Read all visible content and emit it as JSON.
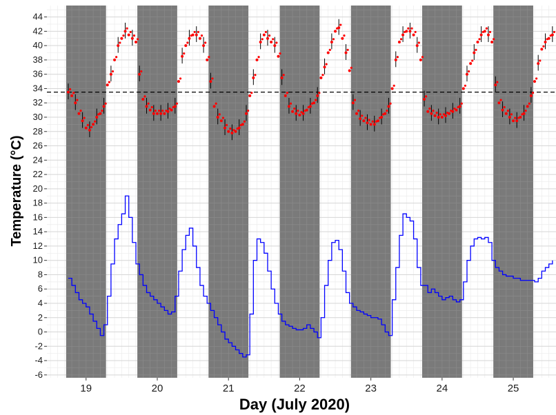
{
  "chart_data": {
    "type": "line",
    "xlabel": "Day (July 2020)",
    "ylabel": "Temperature (°C)",
    "xlim": [
      18.45,
      25.6
    ],
    "ylim": [
      -6.4,
      45.6
    ],
    "x_ticks": [
      19,
      20,
      21,
      22,
      23,
      24,
      25
    ],
    "y_ticks": [
      -6,
      -4,
      -2,
      0,
      2,
      4,
      6,
      8,
      10,
      12,
      14,
      16,
      18,
      20,
      22,
      24,
      26,
      28,
      30,
      32,
      34,
      36,
      38,
      40,
      42,
      44
    ],
    "grid": true,
    "reference_line": {
      "y": 33.5,
      "style": "dashed",
      "color": "#000000"
    },
    "shaded_bands": [
      {
        "x0": 18.72,
        "x1": 19.28
      },
      {
        "x0": 19.72,
        "x1": 20.28
      },
      {
        "x0": 20.72,
        "x1": 21.28
      },
      {
        "x0": 21.72,
        "x1": 22.28
      },
      {
        "x0": 22.72,
        "x1": 23.28
      },
      {
        "x0": 23.72,
        "x1": 24.28
      },
      {
        "x0": 24.72,
        "x1": 25.28
      }
    ],
    "series": [
      {
        "color": "#ff0000",
        "style": "points-with-range-bars",
        "x": [
          18.75,
          18.8,
          18.85,
          18.9,
          18.95,
          19.0,
          19.05,
          19.1,
          19.15,
          19.2,
          19.25,
          19.3,
          19.35,
          19.4,
          19.45,
          19.5,
          19.55,
          19.6,
          19.65,
          19.7,
          19.75,
          19.8,
          19.85,
          19.9,
          19.95,
          20.0,
          20.05,
          20.1,
          20.15,
          20.2,
          20.25,
          20.3,
          20.35,
          20.4,
          20.45,
          20.5,
          20.55,
          20.6,
          20.65,
          20.7,
          20.75,
          20.8,
          20.85,
          20.9,
          20.95,
          21.0,
          21.05,
          21.1,
          21.15,
          21.2,
          21.25,
          21.3,
          21.35,
          21.4,
          21.45,
          21.5,
          21.55,
          21.6,
          21.65,
          21.7,
          21.75,
          21.8,
          21.85,
          21.9,
          21.95,
          22.0,
          22.05,
          22.1,
          22.15,
          22.2,
          22.25,
          22.3,
          22.35,
          22.4,
          22.45,
          22.5,
          22.55,
          22.6,
          22.65,
          22.7,
          22.75,
          22.8,
          22.85,
          22.9,
          22.95,
          23.0,
          23.05,
          23.1,
          23.15,
          23.2,
          23.25,
          23.3,
          23.35,
          23.4,
          23.45,
          23.5,
          23.55,
          23.6,
          23.65,
          23.7,
          23.75,
          23.8,
          23.85,
          23.9,
          23.95,
          24.0,
          24.05,
          24.1,
          24.15,
          24.2,
          24.25,
          24.3,
          24.35,
          24.4,
          24.45,
          24.5,
          24.55,
          24.6,
          24.65,
          24.7,
          24.75,
          24.8,
          24.85,
          24.9,
          24.95,
          25.0,
          25.05,
          25.1,
          25.15,
          25.2,
          25.25,
          25.3,
          25.35,
          25.4,
          25.45,
          25.5,
          25.55
        ],
        "values": [
          33.5,
          33.0,
          32.0,
          30.5,
          29.5,
          28.5,
          28.2,
          29.0,
          30.0,
          30.5,
          31.5,
          34.5,
          36.0,
          38.0,
          40.0,
          41.0,
          42.0,
          41.5,
          41.0,
          40.5,
          36.0,
          32.5,
          31.5,
          31.0,
          30.5,
          30.5,
          30.5,
          30.5,
          30.8,
          31.0,
          31.5,
          35.0,
          38.5,
          40.0,
          41.0,
          41.5,
          41.5,
          41.0,
          40.0,
          38.0,
          35.0,
          31.5,
          30.0,
          29.5,
          28.5,
          28.0,
          27.8,
          28.0,
          28.5,
          29.0,
          30.5,
          33.0,
          35.5,
          38.0,
          40.5,
          41.5,
          41.0,
          40.5,
          40.0,
          38.5,
          35.5,
          33.0,
          31.5,
          30.8,
          30.5,
          30.3,
          30.5,
          31.0,
          31.5,
          32.0,
          33.0,
          35.5,
          37.0,
          39.0,
          40.5,
          42.0,
          42.5,
          41.0,
          39.0,
          36.5,
          32.0,
          30.5,
          29.8,
          29.5,
          29.2,
          29.0,
          29.0,
          29.5,
          30.0,
          30.5,
          31.5,
          34.0,
          38.0,
          40.5,
          41.5,
          42.0,
          42.0,
          41.5,
          40.0,
          38.0,
          32.5,
          30.8,
          30.5,
          30.2,
          30.0,
          30.0,
          30.2,
          30.5,
          30.8,
          31.0,
          31.5,
          34.0,
          36.0,
          37.5,
          39.0,
          40.5,
          41.5,
          42.0,
          41.5,
          40.5,
          34.5,
          32.0,
          31.0,
          30.5,
          30.0,
          29.5,
          29.5,
          30.0,
          30.5,
          31.5,
          33.0,
          35.0,
          37.5,
          39.5,
          40.5,
          41.0,
          41.5
        ]
      },
      {
        "color": "#0000ff",
        "style": "step-line",
        "x": [
          18.75,
          18.8,
          18.85,
          18.9,
          18.95,
          19.0,
          19.05,
          19.1,
          19.15,
          19.2,
          19.25,
          19.3,
          19.35,
          19.4,
          19.45,
          19.5,
          19.55,
          19.6,
          19.65,
          19.7,
          19.75,
          19.8,
          19.85,
          19.9,
          19.95,
          20.0,
          20.05,
          20.1,
          20.15,
          20.2,
          20.25,
          20.3,
          20.35,
          20.4,
          20.45,
          20.5,
          20.55,
          20.6,
          20.65,
          20.7,
          20.75,
          20.8,
          20.85,
          20.9,
          20.95,
          21.0,
          21.05,
          21.1,
          21.15,
          21.2,
          21.25,
          21.3,
          21.35,
          21.4,
          21.45,
          21.5,
          21.55,
          21.6,
          21.65,
          21.7,
          21.75,
          21.8,
          21.85,
          21.9,
          21.95,
          22.0,
          22.05,
          22.1,
          22.15,
          22.2,
          22.25,
          22.3,
          22.35,
          22.4,
          22.45,
          22.5,
          22.55,
          22.6,
          22.65,
          22.7,
          22.75,
          22.8,
          22.85,
          22.9,
          22.95,
          23.0,
          23.05,
          23.1,
          23.15,
          23.2,
          23.25,
          23.3,
          23.35,
          23.4,
          23.45,
          23.5,
          23.55,
          23.6,
          23.65,
          23.7,
          23.75,
          23.8,
          23.85,
          23.9,
          23.95,
          24.0,
          24.05,
          24.1,
          24.15,
          24.2,
          24.25,
          24.3,
          24.35,
          24.4,
          24.45,
          24.5,
          24.55,
          24.6,
          24.65,
          24.7,
          24.75,
          24.8,
          24.85,
          24.9,
          24.95,
          25.0,
          25.05,
          25.1,
          25.15,
          25.2,
          25.25,
          25.3,
          25.35,
          25.4,
          25.45,
          25.5,
          25.55
        ],
        "values": [
          7.5,
          6.5,
          5.5,
          4.5,
          4.0,
          3.5,
          2.5,
          1.5,
          0.5,
          -0.5,
          1.0,
          5.0,
          9.5,
          13.0,
          15.0,
          16.5,
          19.0,
          16.0,
          12.5,
          9.5,
          8.0,
          6.5,
          5.5,
          5.0,
          4.5,
          4.0,
          3.5,
          3.0,
          2.5,
          2.8,
          5.0,
          8.5,
          11.5,
          13.5,
          14.5,
          12.0,
          9.0,
          6.5,
          5.0,
          4.0,
          3.0,
          2.0,
          1.0,
          0.0,
          -1.0,
          -1.5,
          -2.0,
          -2.5,
          -3.0,
          -3.5,
          -3.2,
          2.5,
          10.0,
          13.0,
          12.5,
          11.0,
          8.5,
          6.0,
          4.0,
          2.5,
          1.5,
          1.0,
          0.8,
          0.5,
          0.3,
          0.3,
          0.5,
          1.0,
          0.5,
          0.0,
          -0.8,
          2.0,
          6.5,
          10.0,
          12.5,
          12.8,
          11.5,
          8.5,
          5.5,
          4.0,
          3.5,
          3.0,
          2.8,
          2.5,
          2.3,
          2.0,
          2.0,
          1.8,
          1.0,
          0.0,
          -0.5,
          4.5,
          9.0,
          13.5,
          16.5,
          16.0,
          15.5,
          13.0,
          9.0,
          6.5,
          6.5,
          5.5,
          6.0,
          5.5,
          5.0,
          4.5,
          4.8,
          5.0,
          4.5,
          4.2,
          4.5,
          7.0,
          10.0,
          12.0,
          13.0,
          13.2,
          13.0,
          13.2,
          12.5,
          10.0,
          9.0,
          8.5,
          8.0,
          7.8,
          7.8,
          7.5,
          7.5,
          7.2,
          7.2,
          7.2,
          7.2,
          7.0,
          7.5,
          8.5,
          9.0,
          9.5,
          10.0
        ]
      }
    ]
  }
}
